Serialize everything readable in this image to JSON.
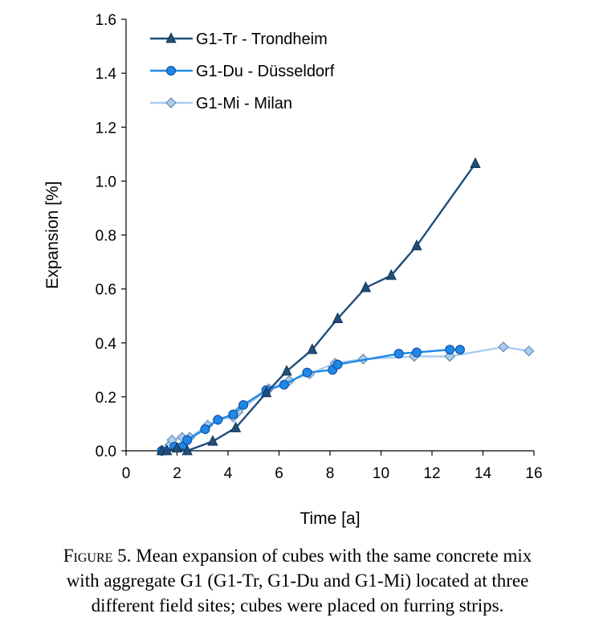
{
  "chart_data": {
    "type": "line",
    "xlabel": "Time [a]",
    "ylabel": "Expansion [%]",
    "xlim": [
      0,
      16
    ],
    "ylim": [
      0.0,
      1.6
    ],
    "xticks": [
      "0",
      "2",
      "4",
      "6",
      "8",
      "10",
      "12",
      "14",
      "16"
    ],
    "yticks": [
      "0.0",
      "0.2",
      "0.4",
      "0.6",
      "0.8",
      "1.0",
      "1.2",
      "1.4",
      "1.6"
    ],
    "grid": false,
    "legend_position": "top-left",
    "series": [
      {
        "name": "G1-Tr - Trondheim",
        "marker": "triangle",
        "color": "#1f4e79",
        "x": [
          1.4,
          1.6,
          2.0,
          2.4,
          3.4,
          4.3,
          5.5,
          6.3,
          7.3,
          8.3,
          9.4,
          10.4,
          11.4,
          13.7
        ],
        "y": [
          0.0,
          0.0,
          0.01,
          0.0,
          0.035,
          0.085,
          0.215,
          0.295,
          0.375,
          0.49,
          0.605,
          0.65,
          0.76,
          1.065
        ]
      },
      {
        "name": "G1-Du - Düsseldorf",
        "marker": "circle",
        "color": "#1e88e5",
        "x": [
          1.4,
          1.9,
          2.2,
          2.4,
          3.1,
          3.6,
          4.2,
          4.6,
          5.5,
          6.2,
          7.1,
          8.1,
          8.3,
          10.7,
          11.4,
          12.7,
          13.1
        ],
        "y": [
          0.0,
          0.015,
          0.015,
          0.04,
          0.08,
          0.115,
          0.135,
          0.17,
          0.225,
          0.245,
          0.29,
          0.3,
          0.32,
          0.36,
          0.365,
          0.375,
          0.375
        ]
      },
      {
        "name": "G1-Mi - Milan",
        "marker": "diamond",
        "color": "#a8ccee",
        "x": [
          1.4,
          1.7,
          1.8,
          2.2,
          2.5,
          3.2,
          3.6,
          4.2,
          4.4,
          5.6,
          6.4,
          7.2,
          8.2,
          9.3,
          11.3,
          12.7,
          14.8,
          15.8
        ],
        "y": [
          0.0,
          0.02,
          0.04,
          0.05,
          0.05,
          0.095,
          0.115,
          0.125,
          0.145,
          0.23,
          0.26,
          0.285,
          0.325,
          0.34,
          0.35,
          0.35,
          0.385,
          0.37
        ]
      }
    ]
  },
  "caption": {
    "figure_label": "Figure 5.",
    "line1": " Mean expansion of cubes with the same concrete mix",
    "line2": "with aggregate G1 (G1-Tr, G1-Du and G1-Mi) located at three",
    "line3": "different field sites; cubes were placed on furring strips."
  }
}
